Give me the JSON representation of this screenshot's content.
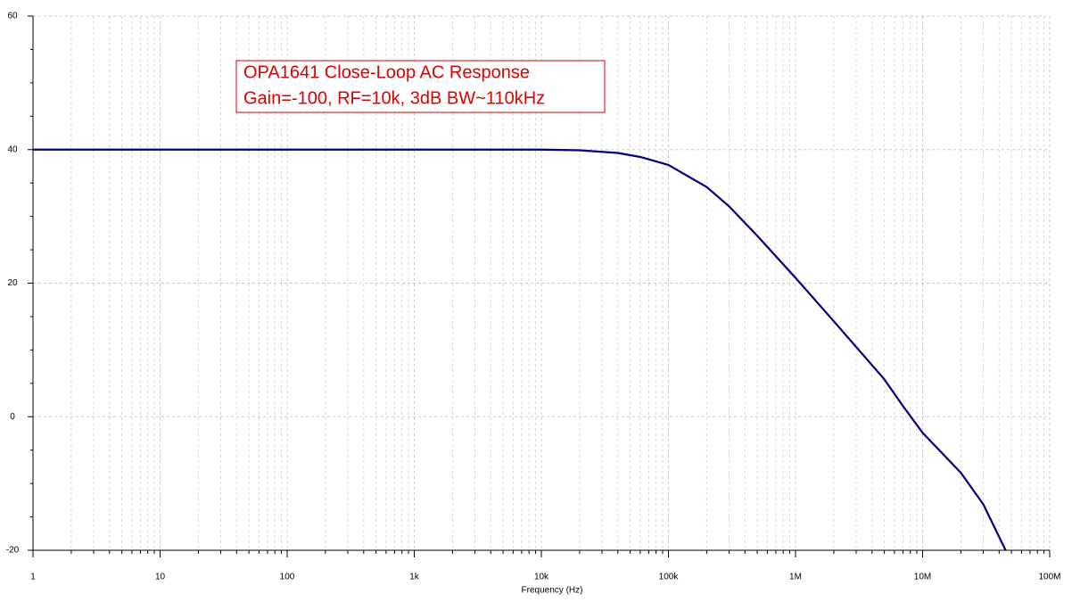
{
  "chart_data": {
    "type": "line",
    "x_label": "Frequency (Hz)",
    "annotations": [
      "OPA1641 Close-Loop AC Response",
      "Gain=-100, RF=10k, 3dB BW~110kHz"
    ],
    "x": [
      1,
      10000,
      20000,
      40000,
      60000,
      100000,
      200000,
      300000,
      500000,
      1000000,
      2000000,
      5000000,
      7000000,
      10000000,
      20000000,
      30000000,
      45000000
    ],
    "values": [
      40,
      40,
      39.9,
      39.5,
      38.9,
      37.7,
      34.4,
      31.5,
      27.1,
      20.8,
      14.3,
      5.6,
      1.6,
      -2.4,
      -8.4,
      -13.1,
      -20
    ],
    "color": "#000080",
    "xscale": "log",
    "xlim": [
      1,
      100000000
    ],
    "xticks": [
      1,
      10,
      100,
      {
        "value": 1000,
        "label": "1k"
      },
      {
        "value": 10000,
        "label": "10k"
      },
      {
        "value": 100000,
        "label": "100k"
      },
      {
        "value": 1000000,
        "label": "1M"
      },
      {
        "value": 10000000,
        "label": "10M"
      },
      {
        "value": 100000000,
        "label": "100M"
      }
    ],
    "ylim": [
      -20,
      60
    ],
    "yticks": [
      -20,
      0,
      20,
      40,
      60
    ],
    "grid": true
  }
}
